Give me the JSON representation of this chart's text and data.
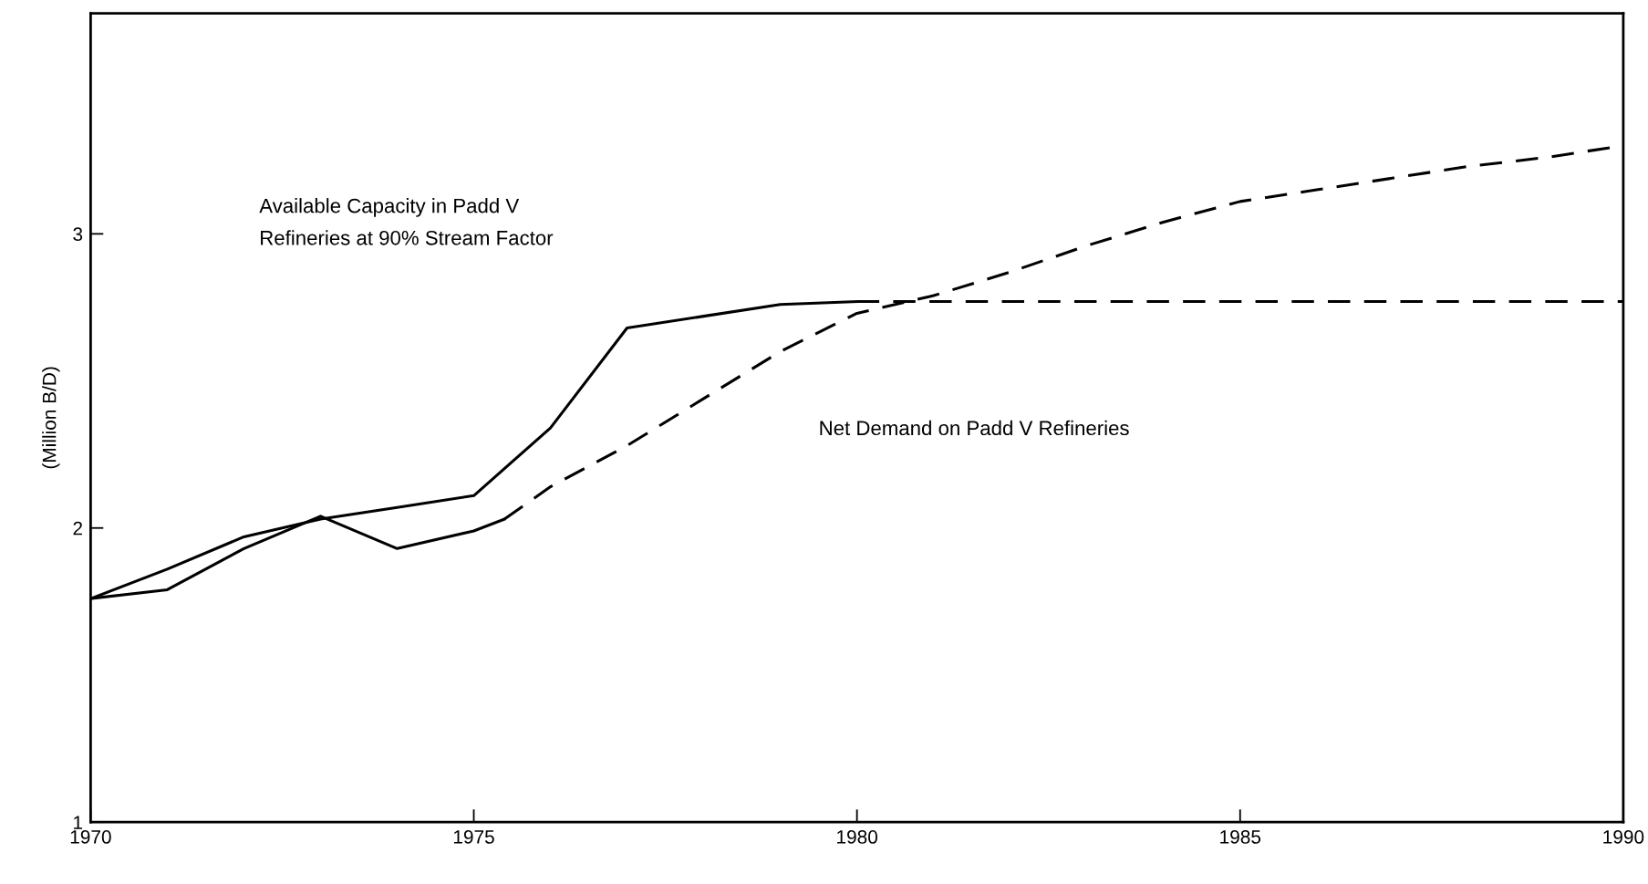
{
  "chart_data": {
    "type": "line",
    "ylabel": "(Million B/D)",
    "xlim": [
      1970,
      1990
    ],
    "xticks": [
      1970,
      1975,
      1980,
      1985,
      1990
    ],
    "ylim": [
      1,
      3.75
    ],
    "yticks": [
      1,
      2,
      3
    ],
    "grid": false,
    "legend": false,
    "marker": "none",
    "series": [
      {
        "color": "#000000",
        "line_style": "solid",
        "x": [
          1970,
          1971,
          1972,
          1973,
          1974,
          1975,
          1976,
          1977,
          1978,
          1979,
          1980
        ],
        "values": [
          1.76,
          1.86,
          1.97,
          2.03,
          2.07,
          2.11,
          2.34,
          2.68,
          2.72,
          2.76,
          2.77
        ]
      },
      {
        "color": "#000000",
        "line_style": "dashed",
        "x": [
          1980,
          1990
        ],
        "values": [
          2.77,
          2.77
        ]
      },
      {
        "color": "#000000",
        "line_style": "solid",
        "x": [
          1970,
          1971,
          1972,
          1973,
          1974,
          1975,
          1975.4
        ],
        "values": [
          1.76,
          1.79,
          1.93,
          2.04,
          1.93,
          1.99,
          2.03
        ]
      },
      {
        "color": "#000000",
        "line_style": "dashed",
        "x": [
          1975.4,
          1976,
          1977,
          1978,
          1979,
          1980,
          1981,
          1982,
          1983,
          1984,
          1985,
          1986,
          1987,
          1988,
          1989,
          1990
        ],
        "values": [
          2.03,
          2.14,
          2.28,
          2.44,
          2.6,
          2.73,
          2.79,
          2.87,
          2.96,
          3.04,
          3.11,
          3.15,
          3.19,
          3.23,
          3.26,
          3.3
        ]
      }
    ],
    "annotations": [
      "Available Capacity in Padd V\nRefineries at 90% Stream Factor",
      "Net Demand on Padd V Refineries"
    ]
  }
}
